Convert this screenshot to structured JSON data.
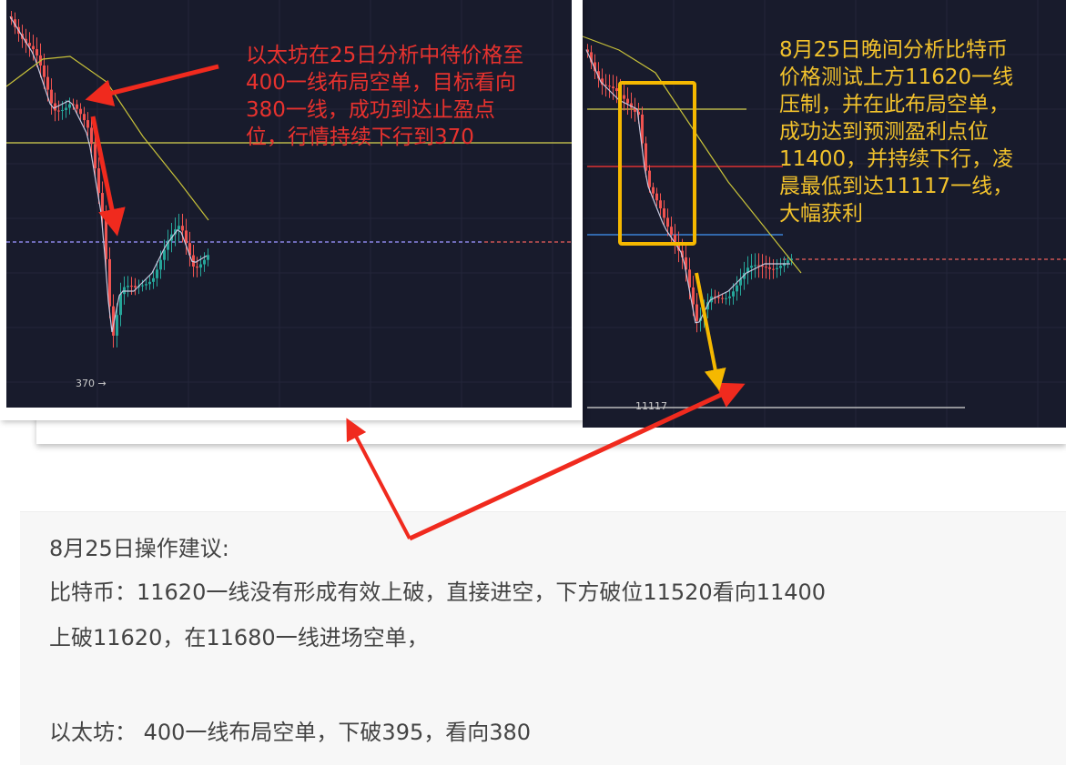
{
  "eth_chart": {
    "annotation": "以太坊在25日分析中待价格至\n400一线布局空单，目标看向\n380一线，成功到达止盈点\n位，行情持续下行到370",
    "low_label": "370 →"
  },
  "btc_chart": {
    "annotation": "8月25日晚间分析比特币\n价格测试上方11620一线\n压制，并在此布局空单，\n成功达到预测盈利点位\n11400，并持续下行，凌\n晨最低到达11117一线，\n大幅获利",
    "low_label": "11117"
  },
  "advice": {
    "title": "8月25日操作建议:",
    "btc_line1": "比特币：11620一线没有形成有效上破，直接进空，下方破位11520看向11400",
    "btc_line2": "上破11620，在11680一线进场空单，",
    "eth_line": "以太坊： 400一线布局空单，下破395，看向380"
  },
  "colors": {
    "chart_bg": "#181b2c",
    "up": "#26a69a",
    "down": "#ef5350",
    "annotation_red": "#e8322e",
    "annotation_yellow": "#f2c22c"
  }
}
